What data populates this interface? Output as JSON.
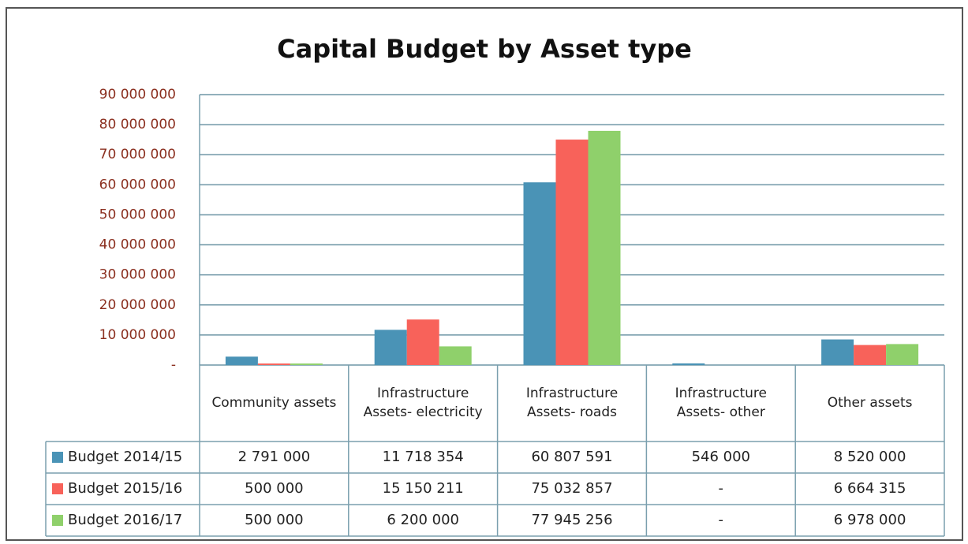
{
  "chart_data": {
    "type": "bar",
    "title": "Capital Budget by Asset type",
    "categories": [
      "Community assets",
      "Infrastructure Assets- electricity",
      "Infrastructure Assets- roads",
      "Infrastructure Assets- other",
      "Other assets"
    ],
    "series": [
      {
        "name": "Budget 2014/15",
        "color": "#4a93b6",
        "values": [
          2791000,
          11718354,
          60807591,
          546000,
          8520000
        ],
        "value_labels": [
          "2 791 000",
          "11 718 354",
          "60 807 591",
          "546 000",
          "8 520 000"
        ]
      },
      {
        "name": "Budget 2015/16",
        "color": "#f8625a",
        "values": [
          500000,
          15150211,
          75032857,
          0,
          6664315
        ],
        "value_labels": [
          "500 000",
          "15 150 211",
          "75 032 857",
          "-",
          "6 664 315"
        ]
      },
      {
        "name": "Budget 2016/17",
        "color": "#8fd06b",
        "values": [
          500000,
          6200000,
          77945256,
          0,
          6978000
        ],
        "value_labels": [
          "500 000",
          "6 200 000",
          "77 945 256",
          "-",
          "6 978 000"
        ]
      }
    ],
    "ylim": [
      0,
      90000000
    ],
    "yticks": [
      {
        "value": 0,
        "label": "-"
      },
      {
        "value": 10000000,
        "label": "10 000 000"
      },
      {
        "value": 20000000,
        "label": "20 000 000"
      },
      {
        "value": 30000000,
        "label": "30 000 000"
      },
      {
        "value": 40000000,
        "label": "40 000 000"
      },
      {
        "value": 50000000,
        "label": "50 000 000"
      },
      {
        "value": 60000000,
        "label": "60 000 000"
      },
      {
        "value": 70000000,
        "label": "70 000 000"
      },
      {
        "value": 80000000,
        "label": "80 000 000"
      },
      {
        "value": 90000000,
        "label": "90 000 000"
      }
    ],
    "grid": true
  }
}
